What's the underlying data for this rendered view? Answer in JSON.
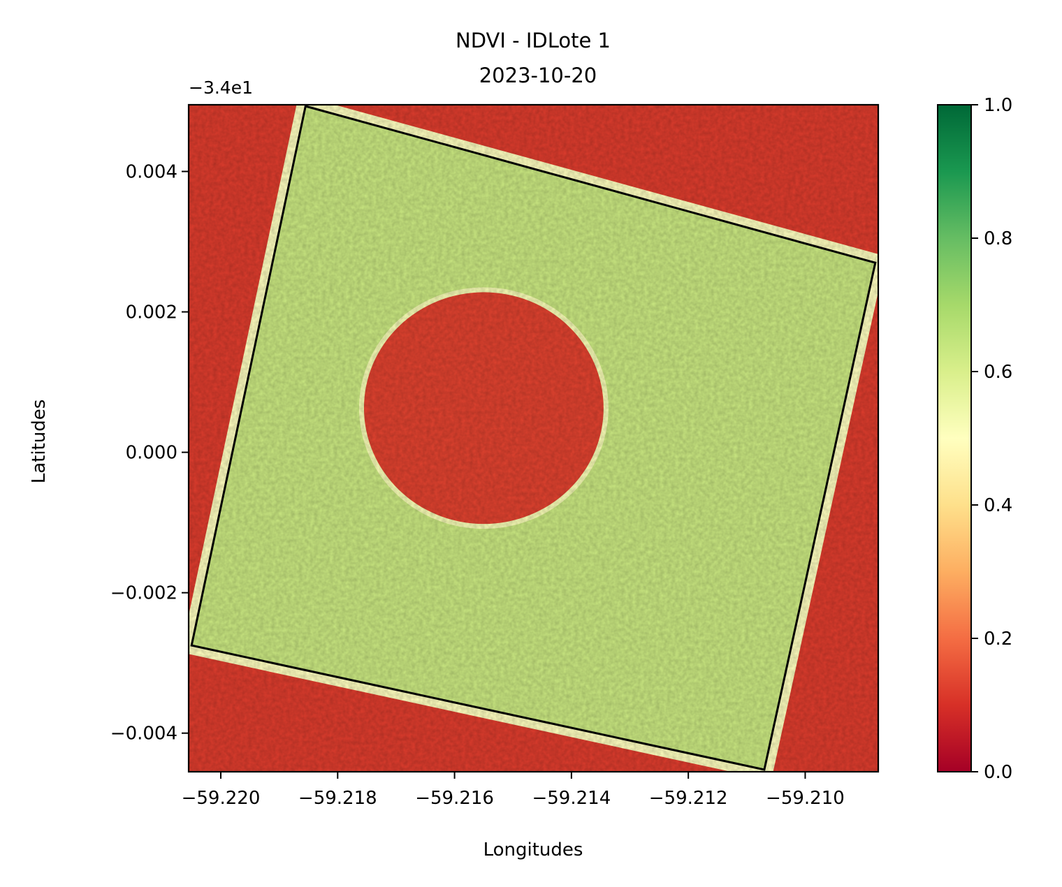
{
  "chart_data": {
    "type": "heatmap",
    "title": "NDVI - IDLote 1",
    "subtitle": "2023-10-20",
    "xlabel": "Longitudes",
    "ylabel": "Latitudes",
    "y_offset_label": "−3.4e1",
    "xlim": [
      -59.22055,
      -59.20875
    ],
    "ylim": [
      -0.00455,
      0.00495
    ],
    "x_ticks": [
      -59.22,
      -59.218,
      -59.216,
      -59.214,
      -59.212,
      -59.21
    ],
    "x_tick_labels": [
      "−59.220",
      "−59.218",
      "−59.216",
      "−59.214",
      "−59.212",
      "−59.210"
    ],
    "y_ticks": [
      -0.004,
      -0.002,
      0.0,
      0.002,
      0.004
    ],
    "y_tick_labels": [
      "−0.004",
      "−0.002",
      "0.000",
      "0.002",
      "0.004"
    ],
    "colorbar": {
      "colormap": "RdYlGn",
      "range": [
        0.0,
        1.0
      ],
      "ticks": [
        0.0,
        0.2,
        0.4,
        0.6,
        0.8,
        1.0
      ],
      "tick_labels": [
        "0.0",
        "0.2",
        "0.4",
        "0.6",
        "0.8",
        "1.0"
      ]
    },
    "colormap_stops": [
      "#a50026",
      "#d73027",
      "#f46d43",
      "#fdae61",
      "#fee08b",
      "#ffffbf",
      "#d9ef8b",
      "#a6d96a",
      "#66bd63",
      "#1a9850",
      "#006837"
    ],
    "regions": {
      "background_ndvi": 0.12,
      "field_ndvi": 0.63,
      "pivot_circle_ndvi": 0.13,
      "pivot_circle": {
        "center": [
          -59.2155,
          0.00063
        ],
        "radius_lon": 0.00205,
        "radius_lat": 0.00165
      }
    },
    "field_polygon": [
      [
        -59.21855,
        0.00493
      ],
      [
        -59.2088,
        0.0027
      ],
      [
        -59.2107,
        -0.00452
      ],
      [
        -59.2205,
        -0.00275
      ]
    ],
    "grid": false
  }
}
